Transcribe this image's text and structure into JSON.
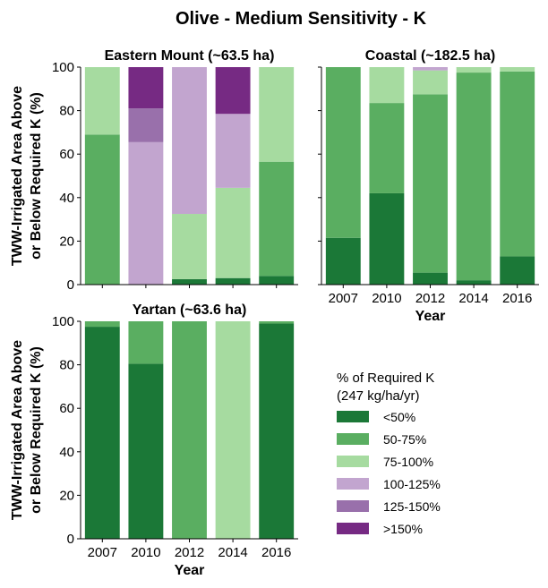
{
  "figure": {
    "title": "Olive - Medium Sensitivity - K"
  },
  "legend": {
    "title_line1": "% of Required K",
    "title_line2": "(247 kg/ha/yr)",
    "placement": "lower-right",
    "entries": [
      {
        "label": "<50%",
        "color": "#1b7837"
      },
      {
        "label": "50-75%",
        "color": "#5aae61"
      },
      {
        "label": "75-100%",
        "color": "#a6dba0"
      },
      {
        "label": "100-125%",
        "color": "#c2a5cf"
      },
      {
        "label": "125-150%",
        "color": "#9970ab"
      },
      {
        "label": ">150%",
        "color": "#762a83"
      }
    ]
  },
  "axes_text": {
    "ylabel_line1": "TWW-Irrigated Area Above",
    "ylabel_line2": "or Below Required K (%)",
    "xlabel": "Year"
  },
  "chart_data": [
    {
      "type": "bar",
      "stacked": true,
      "title": "Eastern Mount (~63.5 ha)",
      "categories": [
        "2007",
        "2010",
        "2012",
        "2014",
        "2016"
      ],
      "ylim": [
        0,
        100
      ],
      "yticks": [
        "0",
        "20",
        "40",
        "60",
        "80",
        "100"
      ],
      "show_ylabel": true,
      "show_xlabel": false,
      "show_yticklabels": true,
      "show_xticklabels": false,
      "series": [
        {
          "name": "<50%",
          "values": [
            0,
            0,
            2.5,
            3,
            4
          ]
        },
        {
          "name": "50-75%",
          "values": [
            69,
            0,
            0,
            0,
            52.5
          ]
        },
        {
          "name": "75-100%",
          "values": [
            31,
            0,
            30,
            41.5,
            43.5
          ]
        },
        {
          "name": "100-125%",
          "values": [
            0,
            65.5,
            67.5,
            34,
            0
          ]
        },
        {
          "name": "125-150%",
          "values": [
            0,
            15.5,
            0,
            0,
            0
          ]
        },
        {
          "name": ">150%",
          "values": [
            0,
            19,
            0,
            21.5,
            0
          ]
        }
      ]
    },
    {
      "type": "bar",
      "stacked": true,
      "title": "Coastal (~182.5 ha)",
      "categories": [
        "2007",
        "2010",
        "2012",
        "2014",
        "2016"
      ],
      "ylim": [
        0,
        100
      ],
      "yticks": [
        "0",
        "20",
        "40",
        "60",
        "80",
        "100"
      ],
      "show_ylabel": false,
      "show_xlabel": true,
      "show_yticklabels": false,
      "show_xticklabels": true,
      "series": [
        {
          "name": "<50%",
          "values": [
            21.5,
            42,
            5.5,
            2,
            13
          ]
        },
        {
          "name": "50-75%",
          "values": [
            78.5,
            41.5,
            82,
            95.5,
            85
          ]
        },
        {
          "name": "75-100%",
          "values": [
            0,
            16.5,
            11,
            2.5,
            2
          ]
        },
        {
          "name": "100-125%",
          "values": [
            0,
            0,
            1.5,
            0,
            0
          ]
        },
        {
          "name": "125-150%",
          "values": [
            0,
            0,
            0,
            0,
            0
          ]
        },
        {
          "name": ">150%",
          "values": [
            0,
            0,
            0,
            0,
            0
          ]
        }
      ]
    },
    {
      "type": "bar",
      "stacked": true,
      "title": "Yartan (~63.6 ha)",
      "categories": [
        "2007",
        "2010",
        "2012",
        "2014",
        "2016"
      ],
      "ylim": [
        0,
        100
      ],
      "yticks": [
        "0",
        "20",
        "40",
        "60",
        "80",
        "100"
      ],
      "show_ylabel": true,
      "show_xlabel": true,
      "show_yticklabels": true,
      "show_xticklabels": true,
      "series": [
        {
          "name": "<50%",
          "values": [
            97.5,
            80.5,
            0,
            0,
            99
          ]
        },
        {
          "name": "50-75%",
          "values": [
            2.5,
            19.5,
            100,
            0,
            1
          ]
        },
        {
          "name": "75-100%",
          "values": [
            0,
            0,
            0,
            100,
            0
          ]
        },
        {
          "name": "100-125%",
          "values": [
            0,
            0,
            0,
            0,
            0
          ]
        },
        {
          "name": "125-150%",
          "values": [
            0,
            0,
            0,
            0,
            0
          ]
        },
        {
          "name": ">150%",
          "values": [
            0,
            0,
            0,
            0,
            0
          ]
        }
      ]
    }
  ]
}
